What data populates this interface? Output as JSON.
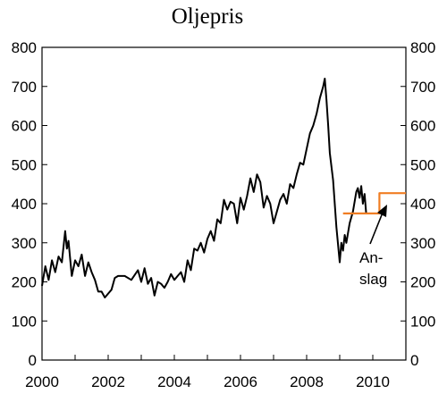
{
  "chart_data": {
    "type": "line",
    "title": "Oljepris",
    "xlabel": "",
    "ylabel": "",
    "xlim": [
      2000,
      2011
    ],
    "ylim": [
      0,
      800
    ],
    "x_ticks": [
      "2000",
      "2002",
      "2004",
      "2006",
      "2008",
      "2010"
    ],
    "y_ticks": [
      "0",
      "100",
      "200",
      "300",
      "400",
      "500",
      "600",
      "700",
      "800"
    ],
    "grid": false,
    "annotation": {
      "line1": "An-",
      "line2": "slag"
    },
    "colors": {
      "actual": "#000000",
      "forecast": "#f07d23"
    },
    "series": [
      {
        "key": "actual",
        "x": [
          2000.0,
          2000.1,
          2000.2,
          2000.3,
          2000.4,
          2000.5,
          2000.6,
          2000.7,
          2000.75,
          2000.8,
          2000.9,
          2001.0,
          2001.1,
          2001.2,
          2001.3,
          2001.4,
          2001.5,
          2001.6,
          2001.7,
          2001.8,
          2001.9,
          2002.0,
          2002.1,
          2002.2,
          2002.3,
          2002.5,
          2002.7,
          2002.9,
          2003.0,
          2003.1,
          2003.2,
          2003.3,
          2003.4,
          2003.5,
          2003.6,
          2003.7,
          2003.8,
          2003.9,
          2004.0,
          2004.1,
          2004.2,
          2004.3,
          2004.4,
          2004.5,
          2004.6,
          2004.7,
          2004.8,
          2004.9,
          2005.0,
          2005.1,
          2005.2,
          2005.3,
          2005.4,
          2005.5,
          2005.6,
          2005.7,
          2005.8,
          2005.9,
          2006.0,
          2006.1,
          2006.2,
          2006.3,
          2006.4,
          2006.5,
          2006.6,
          2006.7,
          2006.8,
          2006.9,
          2007.0,
          2007.1,
          2007.2,
          2007.3,
          2007.4,
          2007.5,
          2007.6,
          2007.7,
          2007.8,
          2007.9,
          2008.0,
          2008.1,
          2008.2,
          2008.3,
          2008.4,
          2008.5,
          2008.55,
          2008.6,
          2008.65,
          2008.7,
          2008.8,
          2008.9,
          2009.0,
          2009.05,
          2009.1,
          2009.15,
          2009.2,
          2009.3,
          2009.4,
          2009.5,
          2009.55,
          2009.6,
          2009.65,
          2009.7,
          2009.75,
          2009.8
        ],
        "y": [
          190,
          240,
          205,
          255,
          225,
          265,
          250,
          330,
          285,
          305,
          215,
          255,
          240,
          270,
          215,
          250,
          225,
          205,
          175,
          175,
          160,
          170,
          180,
          210,
          215,
          215,
          205,
          230,
          200,
          235,
          195,
          210,
          165,
          200,
          195,
          185,
          200,
          220,
          205,
          215,
          225,
          200,
          255,
          230,
          285,
          280,
          300,
          275,
          310,
          330,
          305,
          360,
          350,
          410,
          385,
          405,
          400,
          350,
          415,
          385,
          420,
          465,
          430,
          475,
          455,
          390,
          420,
          400,
          350,
          380,
          410,
          425,
          400,
          450,
          440,
          475,
          505,
          500,
          540,
          580,
          600,
          630,
          670,
          700,
          720,
          665,
          600,
          530,
          460,
          340,
          250,
          300,
          280,
          320,
          300,
          350,
          380,
          430,
          440,
          415,
          445,
          400,
          425,
          375
        ]
      },
      {
        "key": "forecast",
        "x": [
          2009.1,
          2009.95,
          2009.95,
          2010.2,
          2010.2,
          2011.0
        ],
        "y": [
          375,
          375,
          375,
          375,
          427,
          427
        ]
      }
    ]
  }
}
